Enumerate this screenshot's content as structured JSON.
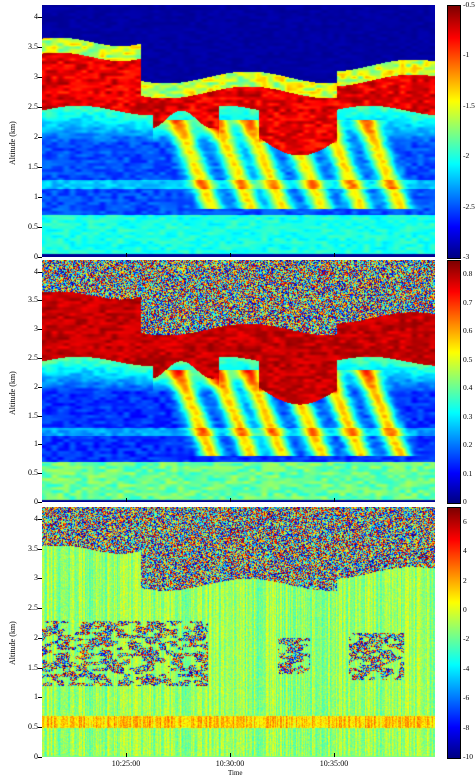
{
  "chart_data": [
    {
      "type": "heatmap",
      "title": "",
      "xlabel": "",
      "ylabel": "Altitude (km)",
      "ylim": [
        0,
        4.2
      ],
      "y_ticks": [
        "0",
        "0.5",
        "1",
        "1.5",
        "2",
        "2.5",
        "3",
        "3.5",
        "4"
      ],
      "colorbar_ticks": [
        "-3",
        "-2.5",
        "-2",
        "-1.5",
        "-1",
        "-0.5"
      ],
      "colorbar_range": [
        -3,
        -0.5
      ],
      "colormap": "jet",
      "grid": false
    },
    {
      "type": "heatmap",
      "title": "",
      "xlabel": "",
      "ylabel": "Altitude (km)",
      "ylim": [
        0,
        4.2
      ],
      "y_ticks": [
        "0",
        "0.5",
        "1",
        "1.5",
        "2",
        "2.5",
        "3",
        "3.5",
        "4"
      ],
      "colorbar_ticks": [
        "0",
        "0.1",
        "0.2",
        "0.3",
        "0.4",
        "0.5",
        "0.6",
        "0.7",
        "0.8"
      ],
      "colorbar_range": [
        0,
        0.85
      ],
      "colormap": "jet",
      "grid": false
    },
    {
      "type": "heatmap",
      "title": "",
      "xlabel": "Time",
      "ylabel": "Altitude (km)",
      "ylim": [
        0,
        4.2
      ],
      "y_ticks": [
        "0",
        "0.5",
        "1",
        "1.5",
        "2",
        "2.5",
        "3",
        "3.5",
        "4"
      ],
      "x_ticks": [
        "10:25:00",
        "10:30:00",
        "10:35:00"
      ],
      "colorbar_ticks": [
        "-10",
        "-8",
        "-6",
        "-4",
        "-2",
        "0",
        "2",
        "4",
        "6"
      ],
      "colorbar_range": [
        -10,
        7
      ],
      "colormap": "jet",
      "grid": false
    }
  ],
  "colors": {
    "colormap_low": "#00008f",
    "colormap_high": "#800000"
  }
}
